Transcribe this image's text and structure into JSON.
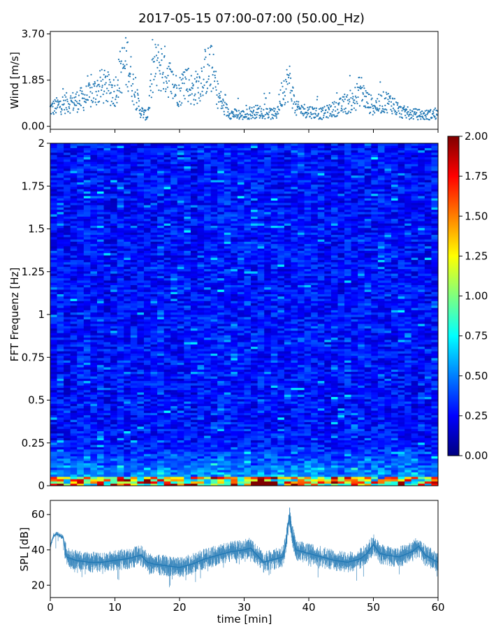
{
  "title": "2017-05-15 07:00-07:00 (50.00_Hz)",
  "chart_data": [
    {
      "type": "scatter",
      "name": "wind",
      "ylabel": "Wind [m/s]",
      "ylim": [
        0,
        3.7
      ],
      "yticks": [
        "0.00",
        "1.85",
        "3.70"
      ],
      "xlim": [
        0,
        60
      ],
      "color": "#1f77b4",
      "envelope_x": [
        0,
        2,
        4,
        6,
        8,
        10,
        11,
        12,
        13,
        14,
        15,
        16,
        17,
        18,
        19,
        20,
        21,
        22,
        23,
        24,
        25,
        26,
        27,
        28,
        30,
        32,
        34,
        35,
        36,
        37,
        38,
        40,
        42,
        44,
        46,
        47,
        48,
        49,
        50,
        52,
        53,
        54,
        56,
        58,
        60
      ],
      "envelope_y": [
        0.7,
        0.9,
        1.0,
        1.2,
        1.6,
        1.4,
        2.3,
        2.6,
        1.4,
        0.6,
        0.4,
        2.3,
        2.4,
        2.2,
        1.6,
        1.4,
        1.9,
        1.4,
        1.7,
        2.2,
        2.3,
        1.2,
        0.7,
        0.5,
        0.45,
        0.6,
        0.5,
        0.5,
        1.5,
        1.8,
        0.7,
        0.6,
        0.5,
        0.7,
        0.9,
        1.0,
        1.5,
        1.0,
        0.8,
        1.0,
        0.9,
        0.6,
        0.5,
        0.45,
        0.5
      ]
    },
    {
      "type": "heatmap",
      "name": "spectrogram",
      "ylabel": "FFT Frequenz [Hz]",
      "ylim": [
        0,
        2
      ],
      "yticks": [
        "0",
        "0.25",
        "0.5",
        "0.75",
        "1",
        "1.25",
        "1.5",
        "1.75",
        "2"
      ],
      "xlim": [
        0,
        60
      ],
      "colorbar": {
        "min": 0,
        "max": 2,
        "ticks": [
          "0.00",
          "0.25",
          "0.50",
          "0.75",
          "1.00",
          "1.25",
          "1.50",
          "1.75",
          "2.00"
        ]
      },
      "colormap": [
        "#00007f",
        "#0000ff",
        "#007fff",
        "#00ffff",
        "#7fff7f",
        "#ffff00",
        "#ff7f00",
        "#ff0000",
        "#7f0000"
      ]
    },
    {
      "type": "line",
      "name": "spl",
      "ylabel": "SPL [dB]",
      "xlabel": "time [min]",
      "ylim": [
        13,
        68
      ],
      "yticks": [
        "20",
        "40",
        "60"
      ],
      "xlim": [
        0,
        60
      ],
      "xticks": [
        "0",
        "10",
        "20",
        "30",
        "40",
        "50",
        "60"
      ],
      "color": "#1f77b4",
      "x": [
        0,
        0.5,
        1,
        1.5,
        2,
        2.5,
        4,
        6,
        8,
        10,
        12,
        14,
        15,
        16,
        18,
        20,
        22,
        24,
        26,
        28,
        30,
        31,
        32,
        33,
        34,
        35,
        36,
        36.5,
        37,
        37.5,
        38,
        40,
        42,
        44,
        46,
        48,
        49,
        50,
        51,
        52,
        54,
        56,
        57,
        58,
        60
      ],
      "y": [
        42,
        48,
        49,
        48,
        47,
        36,
        34,
        33,
        33,
        34,
        35,
        37,
        33,
        32,
        31,
        30,
        32,
        35,
        37,
        39,
        40,
        41,
        37,
        33,
        34,
        35,
        36,
        44,
        60,
        48,
        40,
        38,
        36,
        34,
        33,
        35,
        38,
        43,
        38,
        37,
        36,
        39,
        42,
        37,
        33
      ]
    }
  ]
}
